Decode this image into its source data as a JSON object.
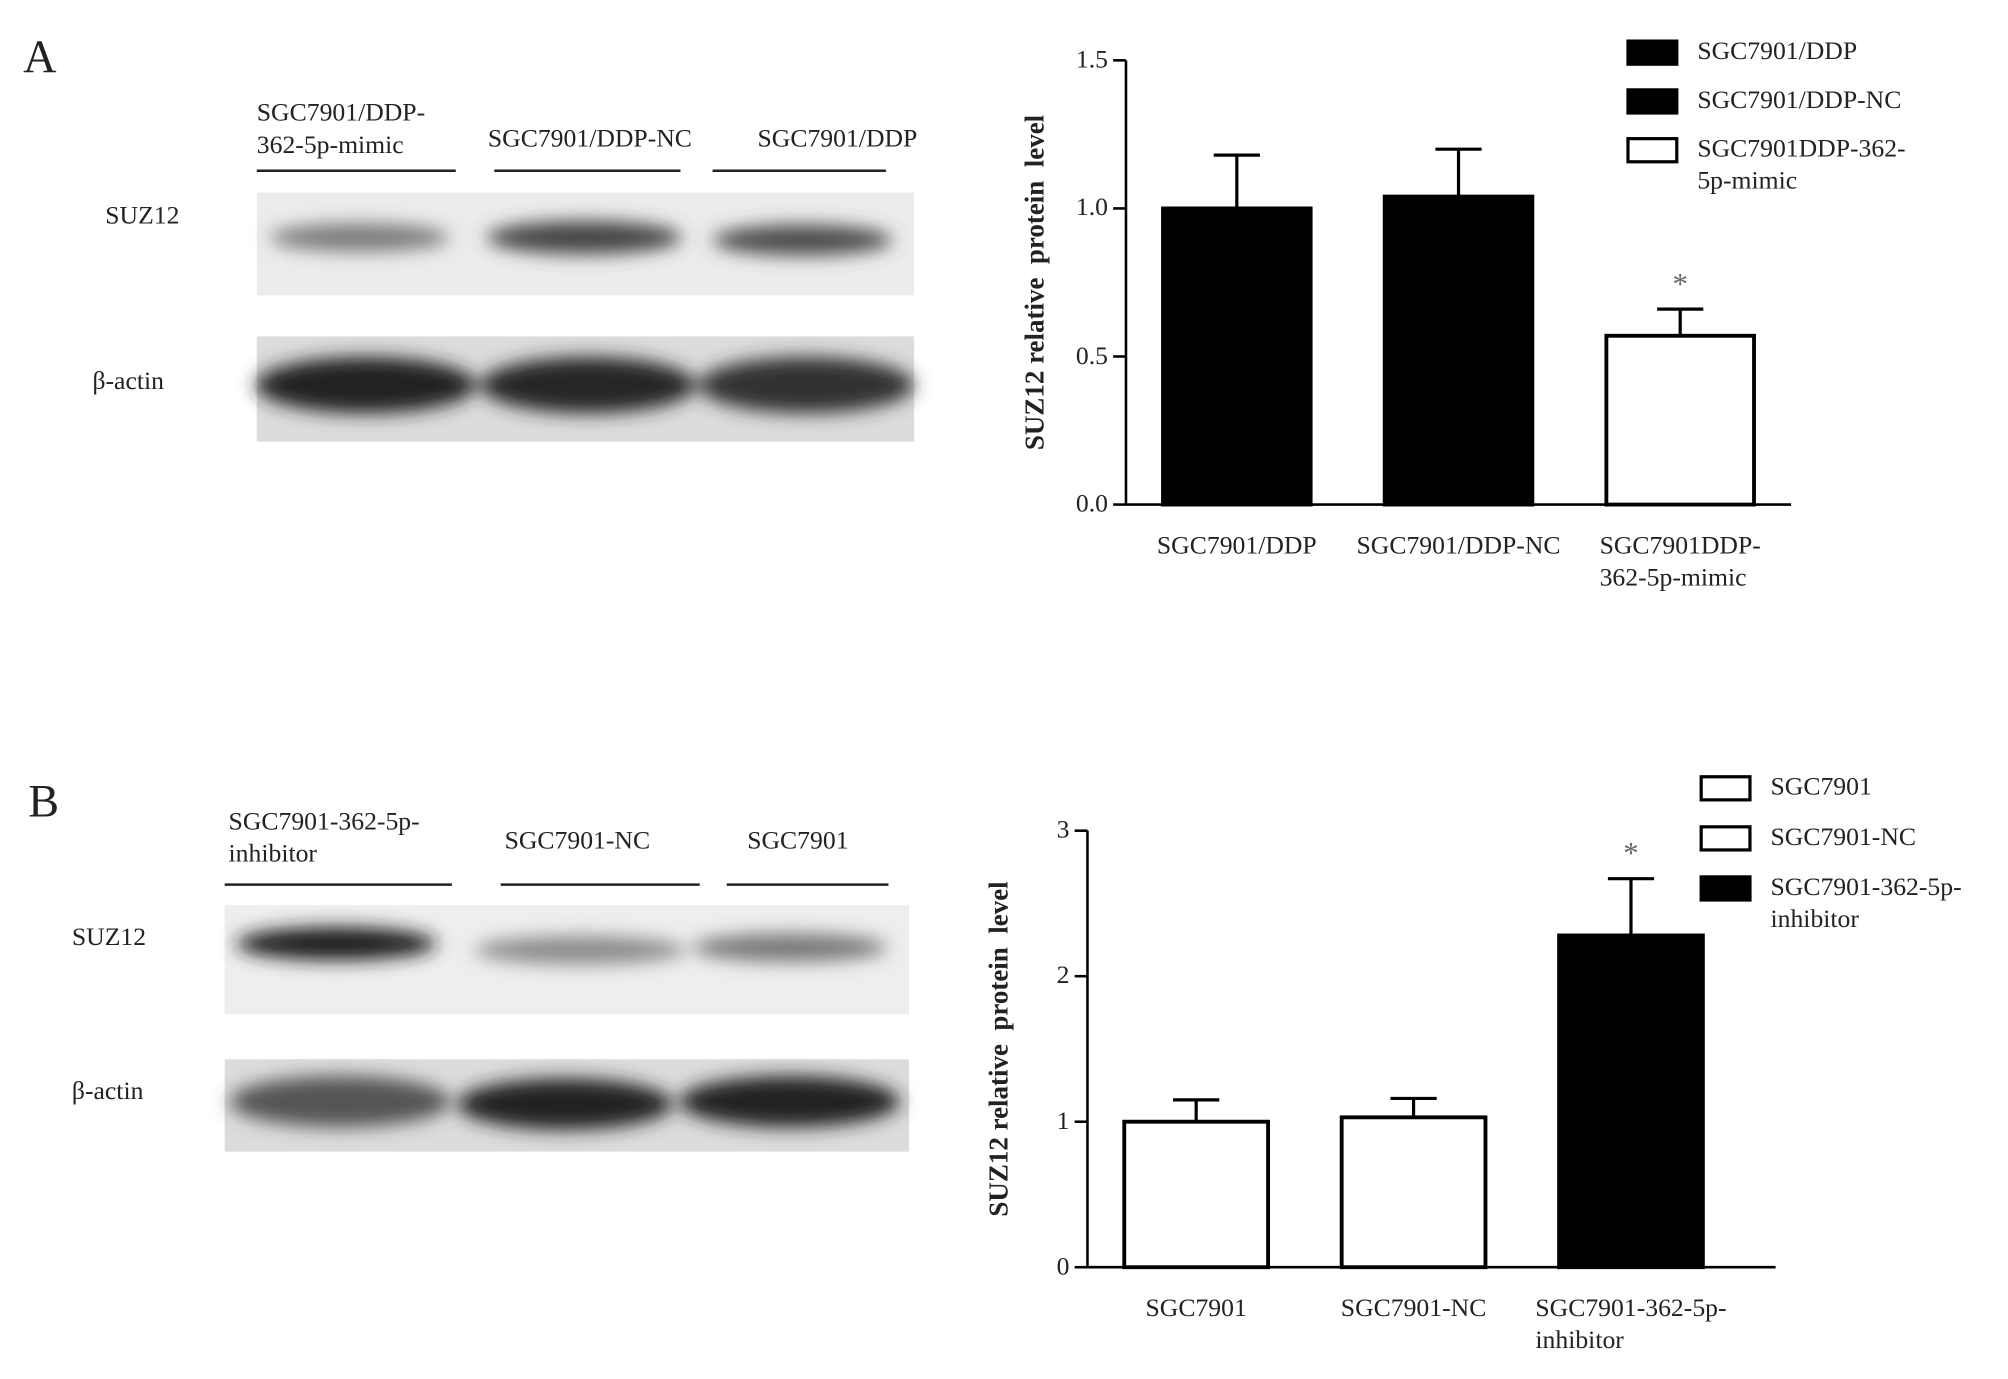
{
  "blots": [
    {
      "letter": "A",
      "lanes": [
        "SGC7901/DDP-\n362-5p-mimic",
        "SGC7901/DDP-NC",
        "SGC7901/DDP"
      ],
      "rows": [
        "SUZ12",
        "β-actin"
      ]
    },
    {
      "letter": "B",
      "lanes": [
        "SGC7901-362-5p-\ninhibitor",
        "SGC7901-NC",
        "SGC7901"
      ],
      "rows": [
        "SUZ12",
        "β-actin"
      ]
    }
  ],
  "chart_data": [
    {
      "type": "bar",
      "ylabel": "SUZ12 relative  protein  level",
      "categories": [
        "SGC7901/DDP",
        "SGC7901/DDP-NC",
        "SGC7901DDP-\n362-5p-mimic"
      ],
      "values": [
        1.0,
        1.04,
        0.57
      ],
      "errors": [
        0.18,
        0.16,
        0.09
      ],
      "colors": [
        "#000000",
        "#000000",
        "#ffffff"
      ],
      "legend": [
        "SGC7901/DDP",
        "SGC7901/DDP-NC",
        "SGC7901DDP-362-\n5p-mimic"
      ],
      "annotations": [
        {
          "text": "*",
          "category": "SGC7901DDP-\n362-5p-mimic"
        }
      ],
      "ylim": [
        0,
        1.5
      ],
      "yticks": [
        {
          "value": 0,
          "label": "0.0"
        },
        0.5,
        {
          "value": 1,
          "label": "1.0"
        },
        1.5
      ]
    },
    {
      "type": "bar",
      "ylabel": "SUZ12 relative  protein  level",
      "categories": [
        "SGC7901",
        "SGC7901-NC",
        "SGC7901-362-5p-\ninhibitor"
      ],
      "values": [
        1.0,
        1.03,
        2.28
      ],
      "errors": [
        0.15,
        0.13,
        0.39
      ],
      "colors": [
        "#ffffff",
        "#ffffff",
        "#000000"
      ],
      "legend": [
        "SGC7901",
        "SGC7901-NC",
        "SGC7901-362-5p-\ninhibitor"
      ],
      "annotations": [
        {
          "text": "*",
          "category": "SGC7901-362-5p-\ninhibitor"
        }
      ],
      "ylim": [
        0,
        3
      ],
      "yticks": [
        0,
        1,
        2,
        3
      ]
    }
  ]
}
